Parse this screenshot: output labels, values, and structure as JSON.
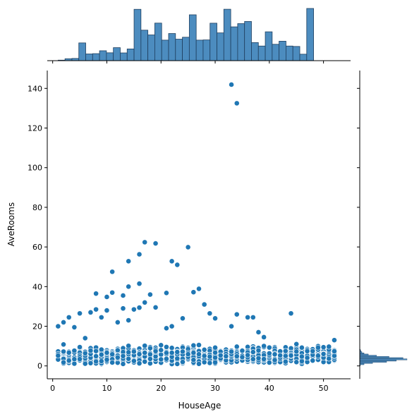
{
  "chart_data": {
    "type": "scatter",
    "title": "",
    "xlabel": "HouseAge",
    "ylabel": "AveRooms",
    "xlim": [
      -1,
      55
    ],
    "ylim": [
      -6.5,
      149
    ],
    "xticks": [
      0,
      10,
      20,
      30,
      40,
      50
    ],
    "yticks": [
      0,
      20,
      40,
      60,
      80,
      100,
      120,
      140
    ],
    "grid": false,
    "legend": "none",
    "colors": {
      "point": "#1f77b4",
      "point_edge": "#ffffff",
      "hist_fill": "#4c8cbf",
      "hist_edge": "#1f3f5f"
    },
    "marginal_x_hist": {
      "bin_edges_start": 1,
      "bin_width": 1.275,
      "counts": [
        12,
        45,
        52,
        412,
        156,
        163,
        230,
        183,
        302,
        180,
        272,
        1192,
        708,
        598,
        872,
        477,
        630,
        499,
        544,
        1065,
        477,
        482,
        870,
        645,
        1194,
        785,
        860,
        910,
        420,
        340,
        670,
        380,
        452,
        340,
        330,
        150,
        1212
      ]
    },
    "marginal_y_hist": {
      "bins": [
        [
          -2,
          0
        ],
        [
          -1,
          2
        ],
        [
          0,
          14
        ],
        [
          1,
          42
        ],
        [
          2,
          88
        ],
        [
          3,
          120
        ],
        [
          4,
          155
        ],
        [
          5,
          142
        ],
        [
          6,
          96
        ],
        [
          7,
          55
        ],
        [
          8,
          28
        ],
        [
          9,
          14
        ],
        [
          10,
          7
        ],
        [
          11,
          4
        ],
        [
          12,
          2
        ]
      ]
    },
    "outliers": [
      {
        "x": 33,
        "y": 141.9
      },
      {
        "x": 34,
        "y": 132.5
      },
      {
        "x": 17,
        "y": 62.4
      },
      {
        "x": 19,
        "y": 61.8
      },
      {
        "x": 25,
        "y": 59.9
      },
      {
        "x": 16,
        "y": 56.3
      },
      {
        "x": 14,
        "y": 52.8
      },
      {
        "x": 22,
        "y": 52.8
      },
      {
        "x": 23,
        "y": 51.0
      },
      {
        "x": 11,
        "y": 47.5
      },
      {
        "x": 16,
        "y": 41.5
      },
      {
        "x": 14,
        "y": 40.0
      },
      {
        "x": 27,
        "y": 38.9
      },
      {
        "x": 26,
        "y": 37.2
      },
      {
        "x": 21,
        "y": 36.8
      },
      {
        "x": 18,
        "y": 36.0
      },
      {
        "x": 8,
        "y": 36.5
      },
      {
        "x": 13,
        "y": 35.5
      },
      {
        "x": 10,
        "y": 34.8
      },
      {
        "x": 11,
        "y": 37.0
      },
      {
        "x": 17,
        "y": 32.0
      },
      {
        "x": 28,
        "y": 31.0
      },
      {
        "x": 16,
        "y": 29.4
      },
      {
        "x": 19,
        "y": 29.5
      },
      {
        "x": 13,
        "y": 29.0
      },
      {
        "x": 15,
        "y": 28.5
      },
      {
        "x": 8,
        "y": 28.5
      },
      {
        "x": 10,
        "y": 28.0
      },
      {
        "x": 7,
        "y": 27.0
      },
      {
        "x": 5,
        "y": 26.5
      },
      {
        "x": 29,
        "y": 26.5
      },
      {
        "x": 34,
        "y": 26.0
      },
      {
        "x": 44,
        "y": 26.5
      },
      {
        "x": 3,
        "y": 24.5
      },
      {
        "x": 30,
        "y": 24.0
      },
      {
        "x": 36,
        "y": 24.5
      },
      {
        "x": 37,
        "y": 24.5
      },
      {
        "x": 24,
        "y": 24.0
      },
      {
        "x": 9,
        "y": 24.5
      },
      {
        "x": 2,
        "y": 22.0
      },
      {
        "x": 1,
        "y": 20.0
      },
      {
        "x": 4,
        "y": 19.5
      },
      {
        "x": 33,
        "y": 20.0
      },
      {
        "x": 38,
        "y": 17.0
      },
      {
        "x": 39,
        "y": 14.5
      },
      {
        "x": 21,
        "y": 19.0
      },
      {
        "x": 22,
        "y": 20.0
      },
      {
        "x": 12,
        "y": 22.0
      },
      {
        "x": 14,
        "y": 23.0
      },
      {
        "x": 6,
        "y": 14.0
      },
      {
        "x": 45,
        "y": 11.0
      },
      {
        "x": 52,
        "y": 13.0
      }
    ],
    "dense_band": {
      "x_min": 1,
      "x_max": 52,
      "y_center": 5.3,
      "y_spread": 2.2,
      "y_min": 0.85,
      "points_per_age": 14
    }
  }
}
